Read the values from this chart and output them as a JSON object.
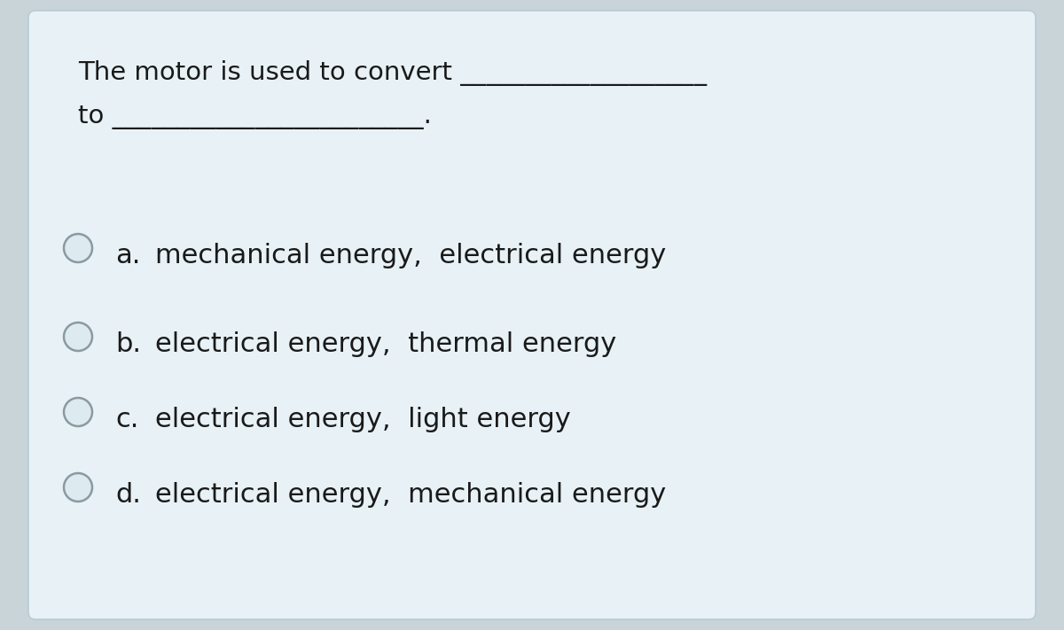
{
  "outer_background": "#c8d4d8",
  "card_background": "#e8f2f6",
  "card_border_color": "#b8ccd4",
  "question_line1": "The motor is used to convert ___________________",
  "question_line2": "to ________________________.",
  "options": [
    {
      "letter": "a.",
      "text": "mechanical energy,  electrical energy"
    },
    {
      "letter": "b.",
      "text": "electrical energy,  thermal energy"
    },
    {
      "letter": "c.",
      "text": "electrical energy,  light energy"
    },
    {
      "letter": "d.",
      "text": "electrical energy,  mechanical energy"
    }
  ],
  "text_color": "#1a1a1a",
  "circle_edge_color": "#8a9aa0",
  "circle_face_color": "#ddeaf0",
  "font_size_question": 21,
  "font_size_options": 22,
  "figsize": [
    12.0,
    7.11
  ],
  "dpi": 100
}
